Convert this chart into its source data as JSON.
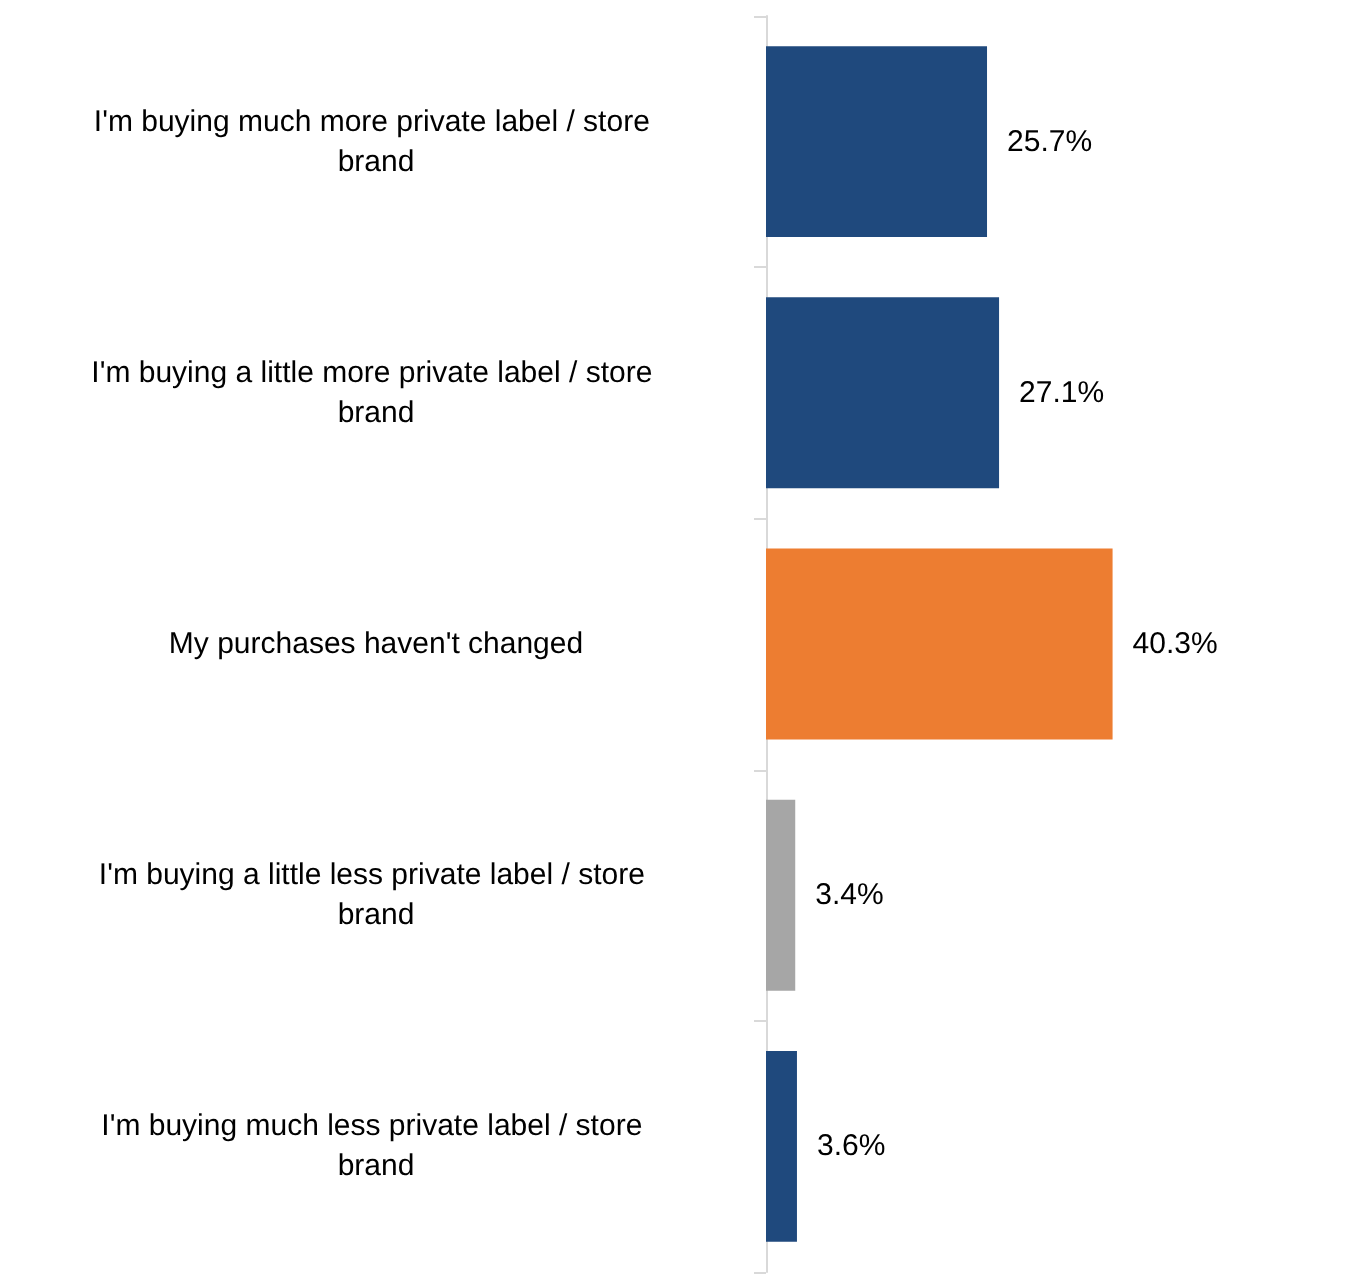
{
  "chart_data": {
    "type": "bar",
    "orientation": "horizontal",
    "categories": [
      "I'm buying much more private label / store brand",
      "I'm buying a little more private label / store brand",
      "My purchases haven't changed",
      "I'm buying a little less private label / store brand",
      "I'm buying much less private label / store brand"
    ],
    "values": [
      25.7,
      27.1,
      40.3,
      3.4,
      3.6
    ],
    "colors": [
      "#1f497d",
      "#1f497d",
      "#ed7d31",
      "#a6a6a6",
      "#1f497d"
    ],
    "value_labels": [
      "25.7%",
      "27.1%",
      "40.3%",
      "3.4%",
      "3.6%"
    ]
  }
}
